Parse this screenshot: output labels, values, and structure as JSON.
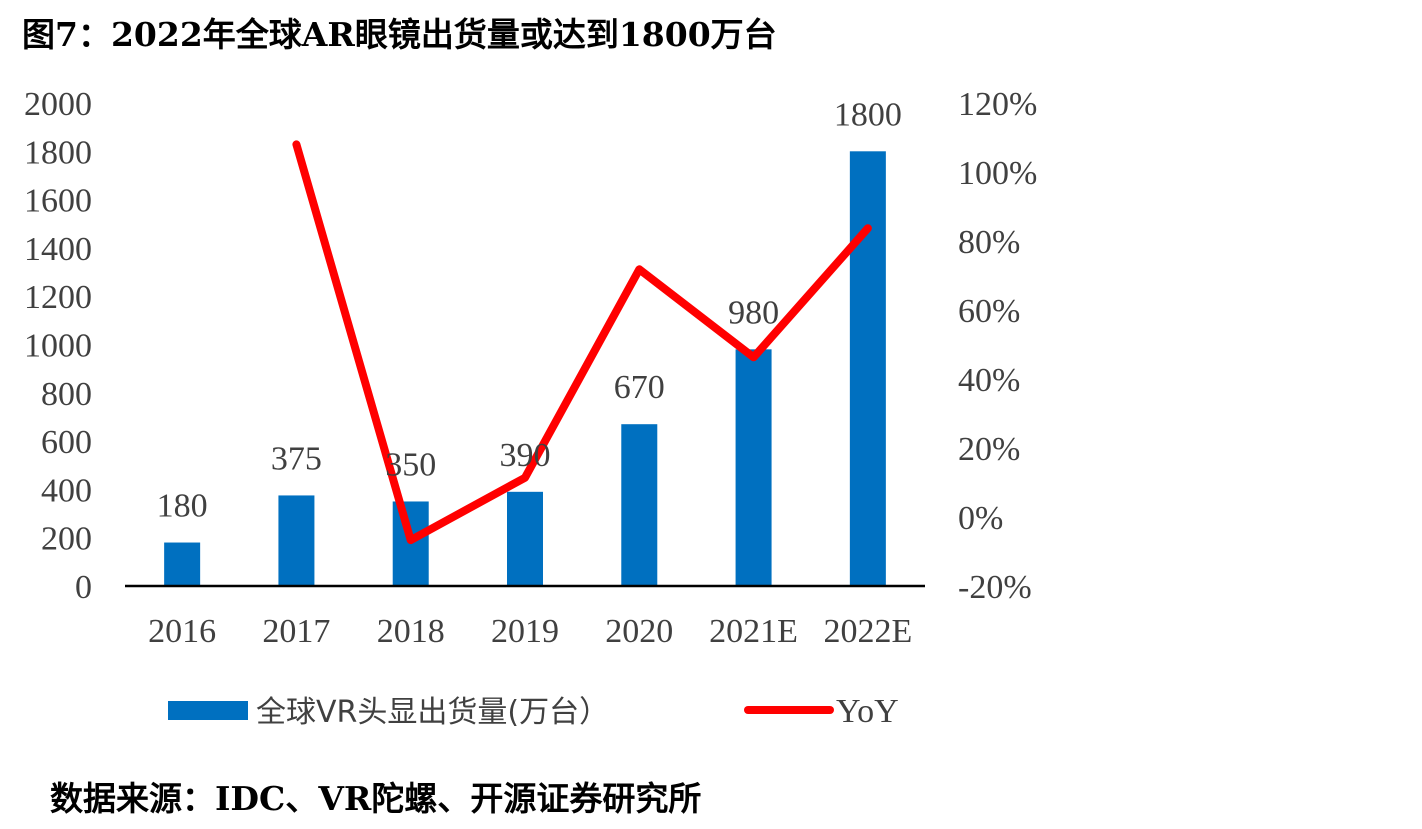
{
  "figure": {
    "title": "图7：2022年全球AR眼镜出货量或达到1800万台",
    "source": "数据来源：IDC、VR陀螺、开源证券研究所"
  },
  "chart_data": {
    "type": "bar",
    "categories": [
      "2016",
      "2017",
      "2018",
      "2019",
      "2020",
      "2021E",
      "2022E"
    ],
    "series": [
      {
        "name": "全球VR头显出货量(万台）",
        "type": "bar",
        "axis": "left",
        "values": [
          180,
          375,
          350,
          390,
          670,
          980,
          1800
        ],
        "labels": [
          "180",
          "375",
          "350",
          "390",
          "670",
          "980",
          "1800"
        ],
        "color": "#0070C0"
      },
      {
        "name": "YoY",
        "type": "line",
        "axis": "right",
        "values": [
          null,
          1.08,
          -0.067,
          0.114,
          0.718,
          0.463,
          0.837
        ],
        "color": "#FF0000"
      }
    ],
    "y_left": {
      "range": [
        0,
        2000
      ],
      "ticks": [
        "0",
        "200",
        "400",
        "600",
        "800",
        "1000",
        "1200",
        "1400",
        "1600",
        "1800",
        "2000"
      ]
    },
    "y_right": {
      "range": [
        -0.2,
        1.2
      ],
      "ticks": [
        "-20%",
        "0%",
        "20%",
        "40%",
        "60%",
        "80%",
        "100%",
        "120%"
      ]
    },
    "grid": false,
    "legend": "bottom"
  }
}
